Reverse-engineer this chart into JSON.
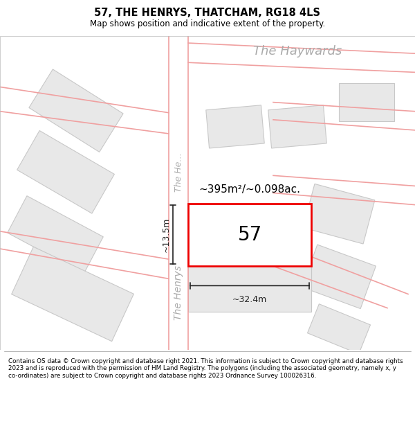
{
  "title_line1": "57, THE HENRYS, THATCHAM, RG18 4LS",
  "title_line2": "Map shows position and indicative extent of the property.",
  "footer_text": "Contains OS data © Crown copyright and database right 2021. This information is subject to Crown copyright and database rights 2023 and is reproduced with the permission of HM Land Registry. The polygons (including the associated geometry, namely x, y co-ordinates) are subject to Crown copyright and database rights 2023 Ordnance Survey 100026316.",
  "map_bg": "#f5f5f5",
  "road_color": "#f0a0a0",
  "plot_fill": "#e8e8e8",
  "plot_edge": "#c8c8c8",
  "highlight_fill": "#ffffff",
  "highlight_edge": "#ff0000",
  "dim_color": "#222222",
  "street_label_color": "#aaaaaa",
  "area_text": "~395m²/~0.098ac.",
  "number_text": "57",
  "dim_width": "~32.4m",
  "dim_height": "~13.5m",
  "haywards_label": "The Haywards",
  "henrys_upper": "The He…",
  "henrys_lower": "The Henrys"
}
